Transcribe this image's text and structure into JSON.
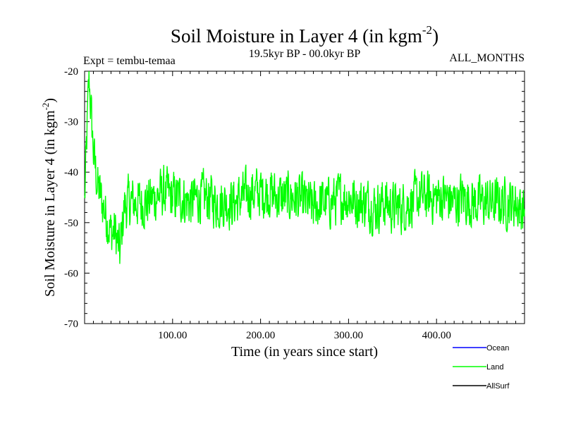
{
  "chart_data": {
    "type": "line",
    "title_main": "Soil Moisture in Layer 4 (in kgm",
    "title_sup": "-2",
    "title_close": ")",
    "subtitle_left": "Expt = tembu-temaa",
    "subtitle_center": "19.5kyr BP - 00.0kyr BP",
    "subtitle_right": "ALL_MONTHS",
    "xlabel": "Time (in years since start)",
    "ylabel_main": "Soil Moisture in Layer 4 (in kgm",
    "ylabel_sup": "-2",
    "ylabel_close": ")",
    "xlim": [
      0,
      500
    ],
    "ylim": [
      -70,
      -20
    ],
    "x_ticks": [
      100,
      200,
      300,
      400
    ],
    "x_tick_labels": [
      "100.00",
      "200.00",
      "300.00",
      "400.00"
    ],
    "y_ticks": [
      -70,
      -60,
      -50,
      -40,
      -30,
      -20
    ],
    "y_tick_labels": [
      "-70",
      "-60",
      "-50",
      "-40",
      "-30",
      "-20"
    ],
    "grid": false,
    "legend_position": "bottom-right",
    "series": [
      {
        "name": "Ocean",
        "color": "#0000ff",
        "values": []
      },
      {
        "name": "Land",
        "color": "#00ff00",
        "x": [
          0,
          5,
          10,
          15,
          20,
          25,
          30,
          35,
          40,
          45,
          50,
          60,
          70,
          80,
          90,
          100,
          110,
          120,
          130,
          140,
          150,
          160,
          170,
          180,
          190,
          200,
          210,
          220,
          230,
          240,
          250,
          260,
          270,
          280,
          290,
          300,
          310,
          320,
          330,
          340,
          350,
          360,
          370,
          380,
          390,
          400,
          410,
          420,
          430,
          440,
          450,
          460,
          470,
          480,
          490,
          500
        ],
        "values": [
          -46,
          -21,
          -36,
          -43,
          -46,
          -49,
          -52,
          -52,
          -56,
          -47,
          -46,
          -46,
          -46,
          -45,
          -44,
          -45,
          -45,
          -46,
          -45,
          -45,
          -46,
          -46,
          -46,
          -45,
          -44,
          -44,
          -44,
          -45,
          -45,
          -45,
          -46,
          -47,
          -46,
          -46,
          -45,
          -45,
          -46,
          -46,
          -47,
          -46,
          -47,
          -47,
          -46,
          -45,
          -45,
          -45,
          -45,
          -46,
          -45,
          -46,
          -46,
          -46,
          -46,
          -46,
          -46,
          -48
        ],
        "noise": 4.5
      },
      {
        "name": "AllSurf",
        "color": "#000000",
        "values": []
      }
    ]
  }
}
